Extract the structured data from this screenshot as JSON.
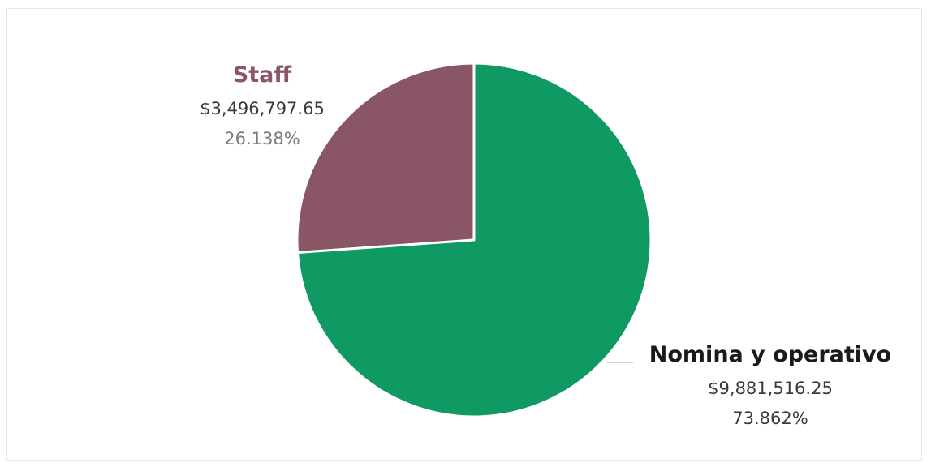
{
  "chart_data": {
    "type": "pie",
    "slices": [
      {
        "label": "Staff",
        "value": 3496797.65,
        "value_label": "$3,496,797.65",
        "percent": 26.138,
        "percent_label": "26.138%",
        "color": "#8a5666",
        "label_color": "#8a5666"
      },
      {
        "label": "Nomina y operativo",
        "value": 9881516.25,
        "value_label": "$9,881,516.25",
        "percent": 73.862,
        "percent_label": "73.862%",
        "color": "#0e9a62",
        "label_color": "#1a1a1a"
      }
    ],
    "start_angle_deg": 0,
    "direction": "counterclockwise",
    "title": "",
    "legend": "none"
  }
}
